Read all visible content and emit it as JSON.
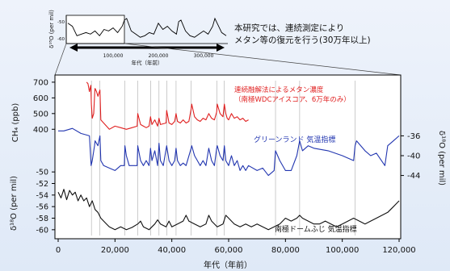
{
  "chart_data": [
    {
      "panel": "inset",
      "type": "line",
      "ylabel": "δ¹⁸O (per mil)",
      "xlabel": "年代（年前）",
      "yticks": [
        "-50",
        "-60"
      ],
      "xticks": [
        "100,000",
        "200,000",
        "300,000"
      ],
      "xlim": [
        0,
        350000
      ],
      "ylim": [
        -62,
        -46
      ],
      "series": [
        {
          "name": "δ18O",
          "x": [
            0,
            10000,
            20000,
            30000,
            40000,
            50000,
            60000,
            70000,
            80000,
            90000,
            100000,
            110000,
            120000,
            125000,
            130000,
            140000,
            150000,
            160000,
            170000,
            180000,
            190000,
            200000,
            210000,
            220000,
            230000,
            240000,
            245000,
            250000,
            260000,
            270000,
            280000,
            290000,
            300000,
            310000,
            320000,
            325000,
            330000,
            340000,
            350000
          ],
          "values": [
            -50,
            -52,
            -58,
            -57,
            -56,
            -57,
            -55,
            -58,
            -54,
            -55,
            -53,
            -56,
            -52,
            -48,
            -47,
            -55,
            -57,
            -59,
            -58,
            -56,
            -57,
            -50,
            -54,
            -52,
            -55,
            -57,
            -49,
            -48,
            -55,
            -58,
            -59,
            -57,
            -55,
            -57,
            -52,
            -47,
            -50,
            -56,
            -58
          ]
        }
      ]
    },
    {
      "panel": "main",
      "type": "line",
      "xlabel": "年代（年前）",
      "xticks": [
        0,
        20000,
        40000,
        60000,
        80000,
        100000,
        120000
      ],
      "xtick_labels": [
        "0",
        "20,000",
        "40,000",
        "60,000",
        "80,000",
        "100,000",
        "120,000"
      ],
      "xlim": [
        0,
        120000
      ],
      "axes": {
        "ch4": {
          "label": "CH₄ (ppb)",
          "ticks": [
            700,
            600,
            500,
            400
          ],
          "range": [
            350,
            720
          ]
        },
        "greenland": {
          "label": "δ¹⁸O (per mil)",
          "ticks": [
            -36,
            -40,
            -44
          ],
          "range": [
            -47,
            -33
          ]
        },
        "antarctic": {
          "label": "δ¹⁸O (per mil)",
          "ticks": [
            -50,
            -52,
            -54,
            -56,
            -58,
            -60
          ],
          "range": [
            -61,
            -49
          ]
        }
      },
      "series": [
        {
          "name": "連続融解法によるメタン濃度（南極WDCアイスコア、6万年のみ）",
          "color": "#e02020",
          "axis": "ch4",
          "x": [
            10000,
            10500,
            11000,
            11500,
            11700,
            12000,
            12500,
            12900,
            13000,
            13500,
            14000,
            14700,
            15000,
            16000,
            17000,
            18000,
            20000,
            22000,
            24000,
            26000,
            27800,
            28000,
            29000,
            30000,
            31000,
            32000,
            32500,
            33000,
            34000,
            35000,
            35500,
            36000,
            38000,
            38200,
            39000,
            40000,
            41000,
            41500,
            42000,
            43000,
            44000,
            45000,
            46000,
            46800,
            47000,
            48000,
            49000,
            50000,
            51000,
            52000,
            53000,
            54000,
            55000,
            55800,
            56000,
            57000,
            58000,
            58500,
            59000,
            59500,
            60000,
            61000,
            62000,
            63000,
            64000,
            65000,
            66000,
            67000
          ],
          "values": [
            700,
            690,
            640,
            680,
            560,
            470,
            500,
            650,
            660,
            640,
            610,
            650,
            460,
            440,
            420,
            400,
            420,
            410,
            400,
            410,
            420,
            500,
            430,
            420,
            410,
            420,
            480,
            430,
            460,
            420,
            470,
            430,
            440,
            520,
            440,
            430,
            450,
            500,
            450,
            440,
            460,
            440,
            450,
            530,
            560,
            480,
            460,
            450,
            470,
            460,
            500,
            470,
            460,
            510,
            560,
            500,
            480,
            560,
            500,
            470,
            460,
            500,
            470,
            480,
            460,
            470,
            450,
            460
          ]
        },
        {
          "name": "グリーンランド 気温指標",
          "color": "#2236b0",
          "axis": "greenland",
          "x": [
            0,
            2000,
            5000,
            8000,
            11000,
            11600,
            12000,
            12800,
            13000,
            14000,
            14700,
            15000,
            16000,
            18000,
            20000,
            22000,
            23300,
            23500,
            24000,
            25000,
            27800,
            28000,
            29000,
            30000,
            31000,
            32000,
            32500,
            33000,
            34000,
            35000,
            35500,
            36000,
            37000,
            38200,
            39000,
            40000,
            41000,
            41500,
            42000,
            43000,
            44000,
            45000,
            46800,
            47000,
            48000,
            49000,
            50000,
            51000,
            52000,
            53000,
            54000,
            55000,
            55800,
            56000,
            57000,
            58000,
            58500,
            59000,
            60000,
            61000,
            62000,
            63000,
            64000,
            65000,
            66000,
            67000,
            70000,
            72000,
            74000,
            76000,
            76500,
            78000,
            80000,
            82000,
            84000,
            85000,
            86000,
            88000,
            90000,
            95000,
            100000,
            104000,
            104500,
            105000,
            108000,
            110000,
            112000,
            115000,
            116000,
            118000,
            120000
          ],
          "values": [
            -35,
            -35,
            -34.5,
            -35.5,
            -36,
            -42,
            -41,
            -38,
            -37,
            -38,
            -36,
            -41,
            -42,
            -42.5,
            -43,
            -42,
            -42,
            -38,
            -40,
            -42,
            -42,
            -38,
            -41,
            -42,
            -41,
            -42,
            -38.5,
            -41,
            -39,
            -42,
            -37.5,
            -41,
            -42,
            -38,
            -41,
            -42,
            -41,
            -38.5,
            -41,
            -42,
            -41.5,
            -42,
            -38.5,
            -38,
            -40,
            -41,
            -42,
            -41,
            -42,
            -38.5,
            -41,
            -42,
            -38.5,
            -38,
            -40,
            -41,
            -38,
            -41,
            -42,
            -40,
            -42,
            -41,
            -43,
            -42,
            -43,
            -42,
            -43,
            -42.5,
            -44,
            -43,
            -39,
            -41,
            -43,
            -43,
            -40,
            -37,
            -39,
            -38,
            -38.5,
            -39,
            -40,
            -41,
            -38,
            -37,
            -39,
            -40,
            -39.5,
            -42,
            -38,
            -37,
            -36
          ]
        },
        {
          "name": "南極ドームふじ 気温指標",
          "color": "#111111",
          "axis": "antarctic",
          "x": [
            0,
            1000,
            2000,
            3000,
            4000,
            5000,
            6000,
            7000,
            8000,
            9000,
            10000,
            11000,
            12000,
            13000,
            14000,
            15000,
            16000,
            17000,
            18000,
            20000,
            22000,
            24000,
            26000,
            28000,
            29000,
            30000,
            32000,
            34000,
            35000,
            36000,
            38000,
            39000,
            40000,
            42000,
            44000,
            45000,
            46000,
            48000,
            50000,
            52000,
            53000,
            54000,
            56000,
            58000,
            59000,
            60000,
            62000,
            64000,
            66000,
            68000,
            70000,
            72000,
            74000,
            76000,
            78000,
            80000,
            82000,
            84000,
            85000,
            86000,
            88000,
            90000,
            92000,
            94000,
            96000,
            98000,
            100000,
            102000,
            104000,
            106000,
            108000,
            110000,
            112000,
            114000,
            116000,
            118000,
            120000
          ],
          "values": [
            -53.5,
            -54.5,
            -53,
            -54.8,
            -53.2,
            -54,
            -53.5,
            -55,
            -54,
            -55,
            -54.5,
            -56,
            -55,
            -56.5,
            -57,
            -58,
            -58.5,
            -59,
            -59.5,
            -60,
            -59.5,
            -60,
            -59.6,
            -59,
            -58.5,
            -59.5,
            -60,
            -59,
            -58.3,
            -59,
            -59.5,
            -58.5,
            -59.5,
            -59,
            -58.5,
            -57.5,
            -58.5,
            -59,
            -59.5,
            -59,
            -57.5,
            -58.5,
            -59.5,
            -59,
            -57.5,
            -58,
            -59,
            -59.5,
            -59,
            -59.5,
            -59,
            -59.5,
            -60,
            -59.5,
            -59,
            -58,
            -58.5,
            -58,
            -57.5,
            -58,
            -58.5,
            -59,
            -59,
            -58.5,
            -59,
            -59.5,
            -59,
            -58.5,
            -58,
            -58.5,
            -59,
            -58.5,
            -58,
            -57.5,
            -57,
            -56,
            -55
          ]
        }
      ]
    }
  ],
  "annotation": {
    "line1": "本研究では、連続測定により",
    "line2": "メタン等の復元を行う(30万年以上)"
  }
}
